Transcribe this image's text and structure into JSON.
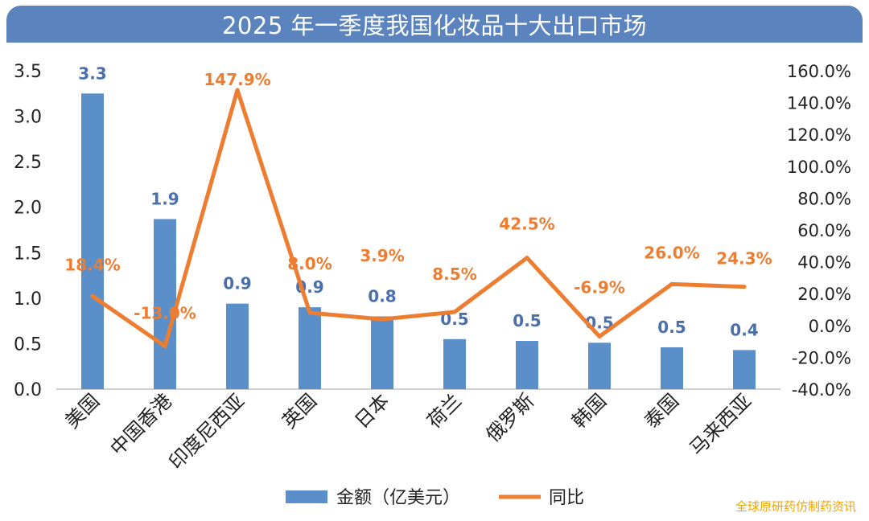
{
  "title": "2025 年一季度我国化妆品十大出口市场",
  "watermark": "全球原研药仿制药资讯",
  "chart_data": {
    "type": "bar+line",
    "categories": [
      "美国",
      "中国香港",
      "印度尼西亚",
      "英国",
      "日本",
      "荷兰",
      "俄罗斯",
      "韩国",
      "泰国",
      "马来西亚"
    ],
    "series": [
      {
        "name": "金额（亿美元）",
        "type": "bar",
        "axis": "left",
        "values": [
          3.25,
          1.87,
          0.94,
          0.9,
          0.8,
          0.55,
          0.53,
          0.51,
          0.46,
          0.43
        ],
        "labels": [
          "3.3",
          "1.9",
          "0.9",
          "0.9",
          "0.8",
          "0.5",
          "0.5",
          "0.5",
          "0.5",
          "0.4"
        ],
        "color": "#5b8fc9",
        "label_color": "#4a6fad"
      },
      {
        "name": "同比",
        "type": "line",
        "axis": "right",
        "values": [
          18.4,
          -13.0,
          147.9,
          8.0,
          3.9,
          8.5,
          42.5,
          -6.9,
          26.0,
          24.3
        ],
        "labels": [
          "18.4%",
          "-13.0%",
          "147.9%",
          "8.0%",
          "3.9%",
          "8.5%",
          "42.5%",
          "-6.9%",
          "26.0%",
          "24.3%"
        ],
        "color": "#ec7d31"
      }
    ],
    "left_axis": {
      "ylim": [
        0,
        3.5
      ],
      "ticks": [
        "0.0",
        "0.5",
        "1.0",
        "1.5",
        "2.0",
        "2.5",
        "3.0",
        "3.5"
      ]
    },
    "right_axis": {
      "ylim": [
        -40,
        160
      ],
      "ticks": [
        "-40.0%",
        "-20.0%",
        "0.0%",
        "20.0%",
        "40.0%",
        "60.0%",
        "80.0%",
        "100.0%",
        "120.0%",
        "140.0%",
        "160.0%"
      ]
    },
    "grid": false,
    "legend": {
      "position": "bottom",
      "entries": [
        "金额（亿美元）",
        "同比"
      ]
    }
  }
}
